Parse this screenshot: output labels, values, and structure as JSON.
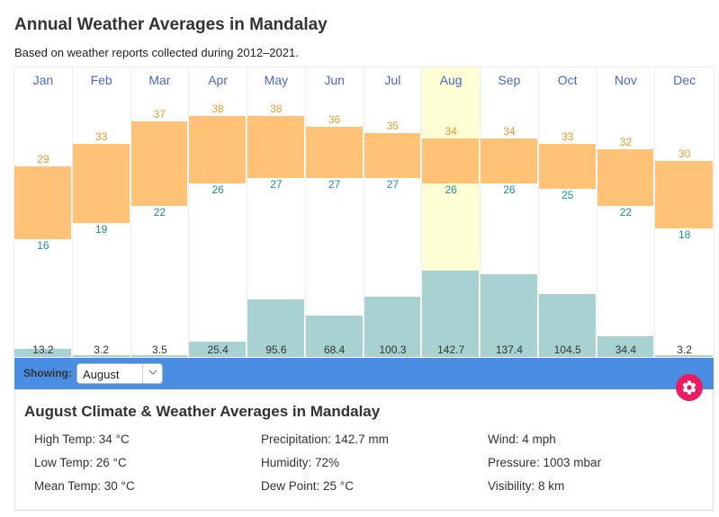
{
  "page": {
    "title": "Annual Weather Averages in Mandalay",
    "subtitle": "Based on weather reports collected during 2012–2021."
  },
  "colors": {
    "month_label": "#4f66c2",
    "high_label": "#f39a2b",
    "low_label": "#1b9393",
    "temp_bar": "#ffc277",
    "precip_bar": "#a8d2d2",
    "highlight": "#ffffd6",
    "band": "#4a8ee3",
    "gear": "#ea1d63"
  },
  "chart_data": {
    "type": "bar",
    "title": "Annual Weather Averages in Mandalay",
    "categories": [
      "Jan",
      "Feb",
      "Mar",
      "Apr",
      "May",
      "Jun",
      "Jul",
      "Aug",
      "Sep",
      "Oct",
      "Nov",
      "Dec"
    ],
    "selected": "Aug",
    "series": [
      {
        "name": "High Temp (°C)",
        "kind": "floating-bar-top",
        "values": [
          29,
          33,
          37,
          38,
          38,
          36,
          35,
          34,
          34,
          33,
          32,
          30
        ]
      },
      {
        "name": "Low Temp (°C)",
        "kind": "floating-bar-bottom",
        "values": [
          16,
          19,
          22,
          26,
          27,
          27,
          27,
          26,
          26,
          25,
          22,
          18
        ]
      },
      {
        "name": "Precipitation (mm)",
        "kind": "bar",
        "values": [
          13.2,
          3.2,
          3.5,
          25.4,
          95.6,
          68.4,
          100.3,
          142.7,
          137.4,
          104.5,
          34.4,
          3.2
        ]
      }
    ],
    "precip_labels": [
      "13.2",
      "3.2",
      "3.5",
      "25.4",
      "95.6",
      "68.4",
      "100.3",
      "142.7",
      "137.4",
      "104.5",
      "34.4",
      "3.2"
    ],
    "grid": false,
    "legend": "none"
  },
  "controls": {
    "showing_label": "Showing:",
    "selected_month": "August",
    "chevron_icon": "chevron-down-icon",
    "settings_icon": "gear-icon"
  },
  "details": {
    "title": "August Climate & Weather Averages in Mandalay",
    "col1": [
      "High Temp: 34 °C",
      "Low Temp: 26 °C",
      "Mean Temp: 30 °C"
    ],
    "col2": [
      "Precipitation: 142.7 mm",
      "Humidity: 72%",
      "Dew Point: 25 °C"
    ],
    "col3": [
      "Wind: 4 mph",
      "Pressure: 1003 mbar",
      "Visibility: 8 km"
    ]
  }
}
